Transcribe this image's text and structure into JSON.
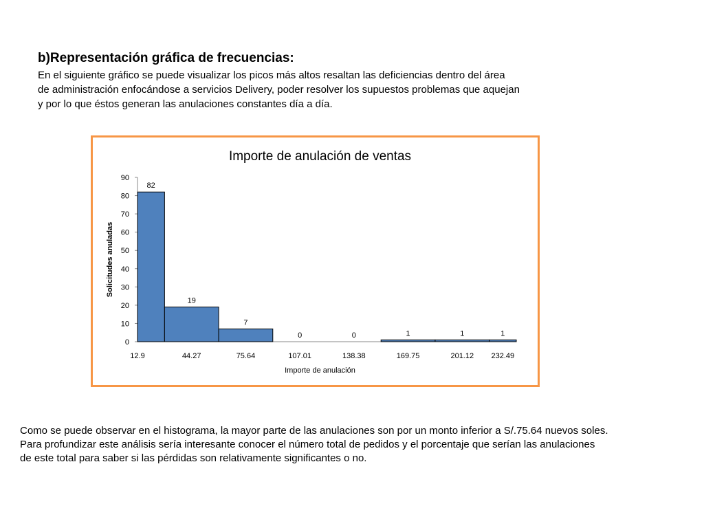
{
  "intro": {
    "heading": "b)Representación gráfica de frecuencias:",
    "lines": [
      "En el siguiente gráfico se puede visualizar los picos más altos resaltan las deficiencias dentro del área",
      "de administración enfocándose a servicios Delivery,  poder resolver los supuestos problemas que  aquejan",
      "y por lo que éstos generan las anulaciones constantes día a día."
    ]
  },
  "chart_data": {
    "type": "bar",
    "title": "Importe de anulación de ventas",
    "xlabel": "Importe de anulación",
    "ylabel": "Solicitudes anuladas",
    "x_ticks": [
      "12.9",
      "44.27",
      "75.64",
      "107.01",
      "138.38",
      "169.75",
      "201.12",
      "232.49"
    ],
    "values": [
      82,
      19,
      7,
      0,
      0,
      1,
      1,
      1
    ],
    "ylim": [
      0,
      90
    ],
    "y_ticks": [
      0,
      10,
      20,
      30,
      40,
      50,
      60,
      70,
      80,
      90
    ],
    "bar_color": "#4f81bd",
    "border_color": "#f79646",
    "grid": false,
    "legend": "none"
  },
  "footer": {
    "lines": [
      "Como se puede observar en el histograma, la mayor parte de las anulaciones son por un monto inferior a S/.75.64 nuevos soles.",
      "Para profundizar este análisis sería interesante conocer el número total de pedidos y el porcentaje que serían las anulaciones",
      "de este total para saber si las pérdidas son relativamente significantes o no."
    ]
  }
}
